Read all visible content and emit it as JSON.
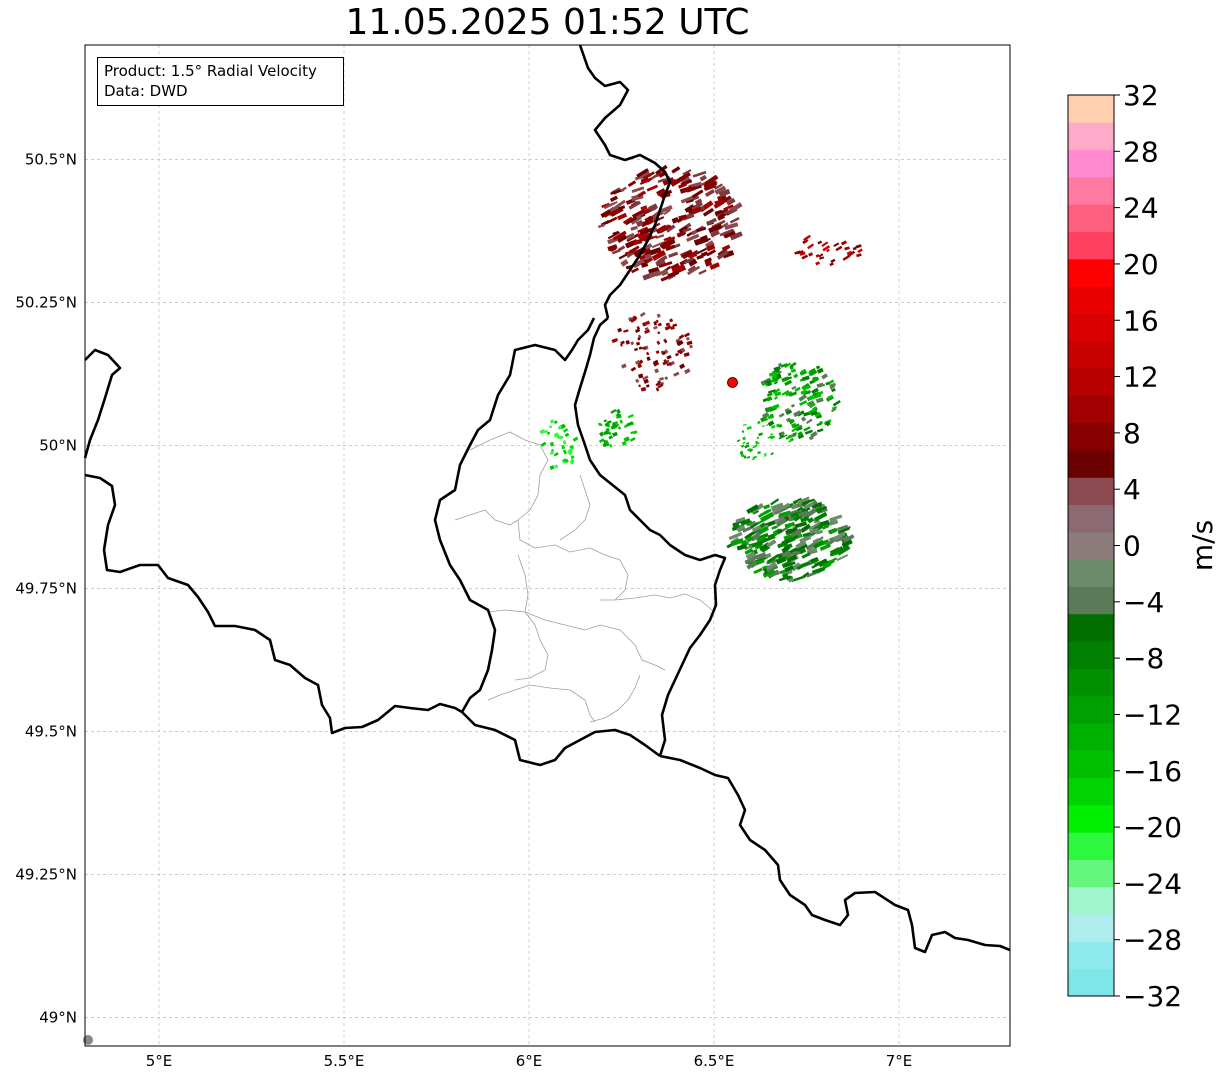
{
  "title": "11.05.2025 01:52 UTC",
  "info": {
    "product": "Product: 1.5° Radial Velocity",
    "data": "Data: DWD"
  },
  "map": {
    "lon_range": [
      4.8,
      7.3
    ],
    "lat_range": [
      48.95,
      50.7
    ],
    "lon_ticks": [
      5.0,
      5.5,
      6.0,
      6.5,
      7.0
    ],
    "lat_ticks": [
      49.0,
      49.25,
      49.5,
      49.75,
      50.0,
      50.25,
      50.5
    ],
    "lon_tick_labels": [
      "5°E",
      "5.5°E",
      "6°E",
      "6.5°E",
      "7°E"
    ],
    "lat_tick_labels": [
      "49°N",
      "49.25°N",
      "49.5°N",
      "49.75°N",
      "50°N",
      "50.25°N",
      "50.5°N"
    ],
    "radar_site": {
      "lon": 6.55,
      "lat": 50.11,
      "color": "#ff0000"
    }
  },
  "colorbar": {
    "label": "m/s",
    "min": -32,
    "max": 32,
    "tick_values": [
      -32,
      -28,
      -24,
      -20,
      -16,
      -12,
      -8,
      -4,
      0,
      4,
      8,
      12,
      16,
      20,
      24,
      28,
      32
    ],
    "tick_labels": [
      "−32",
      "−28",
      "−24",
      "−20",
      "−16",
      "−12",
      "−8",
      "−4",
      "0",
      "4",
      "8",
      "12",
      "16",
      "20",
      "24",
      "28",
      "32"
    ],
    "colors": [
      "#7ce6e8",
      "#8eeaec",
      "#aeecee",
      "#9ff5cc",
      "#64f67e",
      "#2ef83e",
      "#00f000",
      "#00d400",
      "#00c000",
      "#00b000",
      "#00a000",
      "#009000",
      "#008000",
      "#006f00",
      "#5a7a58",
      "#6b8b6a",
      "#8b7b7a",
      "#8c6a74",
      "#8a4a50",
      "#6c0000",
      "#860000",
      "#a00000",
      "#b80000",
      "#c80000",
      "#d80000",
      "#e80000",
      "#ff0000",
      "#ff4060",
      "#ff6080",
      "#ff7aa0",
      "#ff8ad0",
      "#ffaac8",
      "#ffd0b0"
    ]
  },
  "colors": {
    "border": "#000000",
    "district": "#a0a0a0",
    "gridline": "#b0b0b0"
  }
}
